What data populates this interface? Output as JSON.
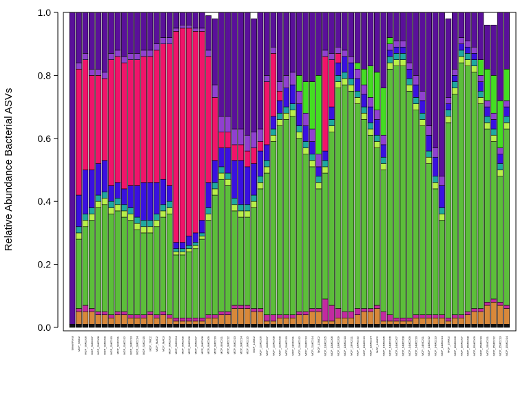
{
  "chart_data": {
    "type": "bar",
    "stacked": true,
    "ylabel": "Relative Abundance Bacterial ASVs",
    "xlabel": "",
    "ylim": [
      0,
      1
    ],
    "yticks": [
      "0.0",
      "0.2",
      "0.4",
      "0.6",
      "0.8",
      "1.0"
    ],
    "grid": false,
    "legend": "none",
    "categories": [
      "SilvertPond",
      "MCP_SMC2",
      "MCP_SMC206",
      "MCP_SMC207",
      "MCP_SMC208",
      "MCP_SMC209",
      "MCP_SMC210",
      "MCP_SMC211",
      "MCP_SMC212",
      "MCP_SMC213",
      "MCP_SMC214",
      "MCP_SMC215",
      "MCP_7MC2",
      "MCP_MAC2",
      "MCP_MAC3",
      "MCP_9MC203",
      "MCP_9MC204",
      "MCP_9MC205",
      "MCP_9MC206",
      "MCP_9MC207",
      "MCP_9MC208",
      "MCP_9MC209",
      "MCP_9MC210",
      "MCP_9MC211",
      "MCP_9MC212",
      "MCP_9MC213",
      "MCP_9MC214",
      "MCP_9MC215",
      "MCP_11MC2",
      "MCP_11MC206",
      "MCP_11MC207",
      "MCP_11MC208",
      "MCP_11MC209",
      "MCP_11MC210",
      "MCP_11MC211",
      "MCP_11MC212",
      "MCP_11MC213",
      "MCP_11MC214",
      "MCP_12MC2",
      "MCP_13MC205",
      "MCP_13MC206",
      "MCP_13MC209",
      "MCP_13MC210",
      "MCP_13MC211",
      "MCP_13MC212",
      "MCP_13MC213",
      "MCP_13MC214",
      "MCP_14MC2",
      "MCP_14MC205",
      "MCP_14MC206",
      "MCP_14MC207",
      "MCP_14MC208",
      "MCP_14MC209",
      "MCP_14MC210",
      "MCP_14MC211",
      "MCP_14MC212",
      "MCP_14MC213",
      "MCP_14MC214",
      "MCP_15MC2",
      "MCP_15MC206",
      "MCP_15MC207",
      "MCP_15MC208",
      "MCP_15MC209",
      "MCP_15MC210",
      "MCP_15MC211",
      "MCP_15MC212",
      "MCP_15MC213",
      "MCP_15MC214"
    ],
    "colors": {
      "other": "#111111",
      "orange": "#D8883A",
      "magenta": "#C22AA0",
      "green": "#5CBE3A",
      "lime": "#B8F04A",
      "teal": "#1FA8A0",
      "blue": "#3A10E0",
      "pink": "#F0146A",
      "purple": "#5A109A",
      "violet": "#9040D0",
      "bright_green": "#44DD22"
    },
    "series": [
      {
        "key": "other",
        "values": [
          0.01,
          0.01,
          0.01,
          0.01,
          0.01,
          0.01,
          0.01,
          0.01,
          0.01,
          0.01,
          0.01,
          0.01,
          0.01,
          0.01,
          0.01,
          0.01,
          0.01,
          0.01,
          0.01,
          0.01,
          0.01,
          0.01,
          0.01,
          0.01,
          0.01,
          0.01,
          0.01,
          0.01,
          0.01,
          0.01,
          0.01,
          0.01,
          0.01,
          0.01,
          0.01,
          0.01,
          0.01,
          0.01,
          0.01,
          0.01,
          0.01,
          0.01,
          0.01,
          0.01,
          0.01,
          0.01,
          0.01,
          0.01,
          0.01,
          0.01,
          0.01,
          0.01,
          0.01,
          0.01,
          0.01,
          0.01,
          0.01,
          0.01,
          0.01,
          0.01,
          0.01,
          0.01,
          0.01,
          0.01,
          0.01,
          0.01,
          0.01,
          0.01
        ]
      },
      {
        "key": "orange",
        "values": [
          0.0,
          0.04,
          0.04,
          0.04,
          0.03,
          0.03,
          0.02,
          0.03,
          0.03,
          0.02,
          0.02,
          0.02,
          0.03,
          0.02,
          0.03,
          0.02,
          0.01,
          0.01,
          0.01,
          0.01,
          0.01,
          0.02,
          0.02,
          0.03,
          0.03,
          0.05,
          0.05,
          0.05,
          0.04,
          0.04,
          0.01,
          0.01,
          0.02,
          0.02,
          0.02,
          0.03,
          0.03,
          0.04,
          0.04,
          0.01,
          0.01,
          0.02,
          0.02,
          0.02,
          0.03,
          0.04,
          0.04,
          0.05,
          0.01,
          0.01,
          0.01,
          0.01,
          0.01,
          0.02,
          0.02,
          0.02,
          0.02,
          0.02,
          0.01,
          0.02,
          0.02,
          0.03,
          0.04,
          0.04,
          0.06,
          0.07,
          0.06,
          0.05
        ]
      },
      {
        "key": "magenta",
        "values": [
          0.0,
          0.01,
          0.02,
          0.01,
          0.01,
          0.01,
          0.01,
          0.01,
          0.01,
          0.01,
          0.01,
          0.01,
          0.01,
          0.01,
          0.01,
          0.01,
          0.01,
          0.01,
          0.01,
          0.01,
          0.01,
          0.01,
          0.01,
          0.01,
          0.01,
          0.01,
          0.01,
          0.01,
          0.01,
          0.01,
          0.02,
          0.02,
          0.01,
          0.01,
          0.01,
          0.01,
          0.01,
          0.01,
          0.01,
          0.07,
          0.05,
          0.03,
          0.02,
          0.02,
          0.02,
          0.01,
          0.01,
          0.01,
          0.03,
          0.02,
          0.01,
          0.01,
          0.01,
          0.01,
          0.01,
          0.01,
          0.01,
          0.01,
          0.01,
          0.01,
          0.01,
          0.01,
          0.01,
          0.01,
          0.01,
          0.01,
          0.01,
          0.01
        ]
      },
      {
        "key": "green",
        "values": [
          0.0,
          0.22,
          0.25,
          0.28,
          0.33,
          0.34,
          0.32,
          0.32,
          0.3,
          0.3,
          0.27,
          0.26,
          0.25,
          0.28,
          0.3,
          0.32,
          0.2,
          0.2,
          0.21,
          0.22,
          0.25,
          0.3,
          0.38,
          0.42,
          0.4,
          0.3,
          0.28,
          0.28,
          0.32,
          0.38,
          0.45,
          0.55,
          0.6,
          0.62,
          0.63,
          0.55,
          0.5,
          0.45,
          0.38,
          0.4,
          0.55,
          0.7,
          0.72,
          0.7,
          0.65,
          0.6,
          0.55,
          0.5,
          0.45,
          0.78,
          0.8,
          0.8,
          0.72,
          0.65,
          0.6,
          0.48,
          0.4,
          0.3,
          0.62,
          0.7,
          0.8,
          0.78,
          0.75,
          0.65,
          0.55,
          0.5,
          0.4,
          0.56
        ]
      },
      {
        "key": "lime",
        "values": [
          0.0,
          0.02,
          0.02,
          0.02,
          0.02,
          0.02,
          0.02,
          0.02,
          0.02,
          0.02,
          0.02,
          0.02,
          0.02,
          0.02,
          0.02,
          0.02,
          0.01,
          0.01,
          0.01,
          0.01,
          0.01,
          0.02,
          0.02,
          0.02,
          0.02,
          0.02,
          0.02,
          0.02,
          0.02,
          0.02,
          0.02,
          0.02,
          0.02,
          0.02,
          0.02,
          0.02,
          0.02,
          0.02,
          0.02,
          0.02,
          0.02,
          0.02,
          0.02,
          0.02,
          0.02,
          0.02,
          0.02,
          0.02,
          0.02,
          0.02,
          0.02,
          0.02,
          0.02,
          0.02,
          0.02,
          0.02,
          0.02,
          0.02,
          0.02,
          0.02,
          0.02,
          0.02,
          0.02,
          0.02,
          0.02,
          0.02,
          0.02,
          0.02
        ]
      },
      {
        "key": "teal",
        "values": [
          0.0,
          0.02,
          0.02,
          0.02,
          0.02,
          0.02,
          0.02,
          0.02,
          0.02,
          0.02,
          0.02,
          0.02,
          0.02,
          0.02,
          0.02,
          0.02,
          0.01,
          0.01,
          0.01,
          0.01,
          0.01,
          0.02,
          0.02,
          0.02,
          0.02,
          0.02,
          0.02,
          0.02,
          0.02,
          0.02,
          0.02,
          0.02,
          0.02,
          0.02,
          0.02,
          0.02,
          0.02,
          0.02,
          0.02,
          0.02,
          0.02,
          0.02,
          0.02,
          0.02,
          0.02,
          0.02,
          0.02,
          0.02,
          0.02,
          0.02,
          0.02,
          0.02,
          0.02,
          0.02,
          0.02,
          0.02,
          0.02,
          0.02,
          0.02,
          0.02,
          0.02,
          0.02,
          0.02,
          0.02,
          0.02,
          0.02,
          0.02,
          0.02
        ]
      },
      {
        "key": "blue",
        "values": [
          0.0,
          0.1,
          0.14,
          0.12,
          0.1,
          0.1,
          0.05,
          0.05,
          0.05,
          0.07,
          0.1,
          0.12,
          0.12,
          0.1,
          0.08,
          0.05,
          0.02,
          0.02,
          0.03,
          0.03,
          0.04,
          0.08,
          0.07,
          0.06,
          0.08,
          0.12,
          0.14,
          0.12,
          0.1,
          0.08,
          0.05,
          0.04,
          0.04,
          0.06,
          0.06,
          0.07,
          0.05,
          0.04,
          0.03,
          0.03,
          0.04,
          0.04,
          0.05,
          0.05,
          0.04,
          0.04,
          0.05,
          0.05,
          0.04,
          0.02,
          0.02,
          0.02,
          0.03,
          0.04,
          0.04,
          0.05,
          0.06,
          0.07,
          0.02,
          0.02,
          0.02,
          0.02,
          0.02,
          0.03,
          0.03,
          0.03,
          0.03,
          0.03
        ]
      },
      {
        "key": "pink",
        "values": [
          0.0,
          0.4,
          0.35,
          0.3,
          0.28,
          0.26,
          0.4,
          0.4,
          0.4,
          0.4,
          0.4,
          0.4,
          0.4,
          0.42,
          0.43,
          0.45,
          0.67,
          0.68,
          0.66,
          0.64,
          0.6,
          0.4,
          0.2,
          0.05,
          0.05,
          0.05,
          0.05,
          0.05,
          0.05,
          0.03,
          0.2,
          0.2,
          0.03,
          0.0,
          0.0,
          0.0,
          0.0,
          0.0,
          0.0,
          0.3,
          0.15,
          0.03,
          0.0,
          0.0,
          0.0,
          0.0,
          0.0,
          0.0,
          0.0,
          0.0,
          0.0,
          0.0,
          0.0,
          0.0,
          0.0,
          0.0,
          0.0,
          0.0,
          0.0,
          0.0,
          0.0,
          0.0,
          0.0,
          0.0,
          0.0,
          0.0,
          0.0,
          0.0
        ]
      },
      {
        "key": "violet",
        "values": [
          0.0,
          0.02,
          0.02,
          0.02,
          0.02,
          0.02,
          0.02,
          0.02,
          0.02,
          0.02,
          0.02,
          0.02,
          0.02,
          0.02,
          0.02,
          0.02,
          0.01,
          0.01,
          0.01,
          0.01,
          0.01,
          0.02,
          0.04,
          0.05,
          0.05,
          0.05,
          0.05,
          0.05,
          0.05,
          0.04,
          0.02,
          0.02,
          0.03,
          0.04,
          0.04,
          0.04,
          0.04,
          0.04,
          0.04,
          0.02,
          0.02,
          0.02,
          0.02,
          0.02,
          0.03,
          0.03,
          0.03,
          0.03,
          0.03,
          0.02,
          0.02,
          0.02,
          0.02,
          0.03,
          0.03,
          0.03,
          0.03,
          0.03,
          0.02,
          0.02,
          0.02,
          0.02,
          0.02,
          0.02,
          0.02,
          0.02,
          0.02,
          0.02
        ]
      },
      {
        "key": "bright_green",
        "values": [
          0.0,
          0.0,
          0.0,
          0.0,
          0.0,
          0.0,
          0.0,
          0.0,
          0.0,
          0.0,
          0.0,
          0.0,
          0.0,
          0.0,
          0.0,
          0.0,
          0.0,
          0.0,
          0.0,
          0.0,
          0.0,
          0.0,
          0.0,
          0.0,
          0.0,
          0.0,
          0.0,
          0.0,
          0.0,
          0.0,
          0.0,
          0.0,
          0.0,
          0.0,
          0.0,
          0.05,
          0.1,
          0.15,
          0.25,
          0.0,
          0.0,
          0.0,
          0.0,
          0.0,
          0.02,
          0.05,
          0.1,
          0.12,
          0.15,
          0.02,
          0.0,
          0.0,
          0.0,
          0.0,
          0.0,
          0.0,
          0.0,
          0.0,
          0.0,
          0.0,
          0.0,
          0.0,
          0.0,
          0.05,
          0.1,
          0.12,
          0.15,
          0.1
        ]
      },
      {
        "key": "purple",
        "values": [
          0.99,
          0.16,
          0.13,
          0.18,
          0.18,
          0.19,
          0.13,
          0.12,
          0.14,
          0.13,
          0.13,
          0.12,
          0.12,
          0.1,
          0.08,
          0.08,
          0.05,
          0.04,
          0.05,
          0.06,
          0.05,
          0.11,
          0.21,
          0.33,
          0.33,
          0.37,
          0.37,
          0.39,
          0.36,
          0.37,
          0.2,
          0.11,
          0.22,
          0.2,
          0.19,
          0.2,
          0.22,
          0.22,
          0.21,
          0.12,
          0.13,
          0.11,
          0.12,
          0.14,
          0.16,
          0.18,
          0.17,
          0.19,
          0.24,
          0.1,
          0.09,
          0.09,
          0.16,
          0.2,
          0.25,
          0.36,
          0.43,
          0.52,
          0.25,
          0.18,
          0.08,
          0.09,
          0.11,
          0.15,
          0.14,
          0.16,
          0.28,
          0.18
        ]
      }
    ]
  }
}
